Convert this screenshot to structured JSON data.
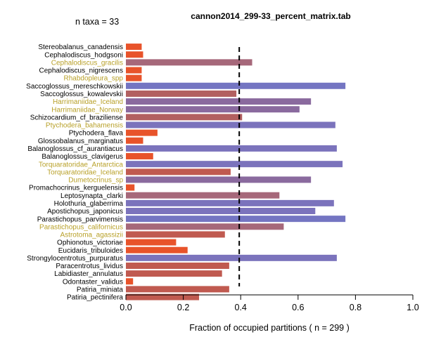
{
  "chart_data": {
    "type": "bar",
    "orientation": "horizontal",
    "title": "cannon2014_299-33_percent_matrix.tab",
    "annotation": "n taxa = 33",
    "xlabel": "Fraction of occupied partitions ( n = 299 )",
    "xlim": [
      0,
      1.0
    ],
    "xticks": [
      "0.0",
      "0.2",
      "0.4",
      "0.6",
      "0.8",
      "1.0"
    ],
    "grid": false,
    "reference_line": 0.395,
    "categories": [
      "Stereobalanus_canadensis",
      "Cephalodiscus_hodgsoni",
      "Cephalodiscus_gracilis",
      "Cephalodiscus_nigrescens",
      "Rhabdopleura_spp",
      "Saccoglossus_mereschkowskii",
      "Saccoglossus_kowalevskii",
      "Harrimaniidae_Iceland",
      "Harrimaniidae_Norway",
      "Schizocardium_cf_braziliense",
      "Ptychodera_bahamensis",
      "Ptychodera_flava",
      "Glossobalanus_marginatus",
      "Balanoglossus_cf_aurantiacus",
      "Balanoglossus_clavigerus",
      "Torquaratoridae_Antarctica",
      "Torquaratoridae_Iceland",
      "Dumetocrinus_sp",
      "Promachocrinus_kerguelensis",
      "Leptosynapta_clarki",
      "Holothuria_glaberrima",
      "Apostichopus_japonicus",
      "Parastichopus_parvimensis",
      "Parastichopus_californicus",
      "Astrotoma_agassizii",
      "Ophionotus_victoriae",
      "Eucidaris_tribuloides",
      "Strongylocentrotus_purpuratus",
      "Paracentrotus_lividus",
      "Labidiaster_annulatus",
      "Odontaster_validus",
      "Patiria_miniata",
      "Patiria_pectinifera"
    ],
    "values": [
      0.055,
      0.06,
      0.44,
      0.055,
      0.055,
      0.765,
      0.385,
      0.645,
      0.605,
      0.405,
      0.73,
      0.11,
      0.06,
      0.735,
      0.095,
      0.755,
      0.365,
      0.645,
      0.03,
      0.535,
      0.725,
      0.66,
      0.765,
      0.55,
      0.345,
      0.175,
      0.215,
      0.735,
      0.36,
      0.335,
      0.025,
      0.36,
      0.255
    ],
    "bar_colors": [
      "#e8532a",
      "#e8532a",
      "#a6687a",
      "#e8532a",
      "#e8532a",
      "#7475c2",
      "#b26060",
      "#8a6a9e",
      "#8a6a9e",
      "#b26060",
      "#7b73bc",
      "#e8532a",
      "#e8532a",
      "#7b73bc",
      "#e8532a",
      "#7b73bc",
      "#c05a50",
      "#8a6a9e",
      "#e8532a",
      "#a6687a",
      "#7b73bc",
      "#7b73bc",
      "#7475c2",
      "#a6687a",
      "#c05a50",
      "#e8532a",
      "#e8532a",
      "#7b73bc",
      "#c05a50",
      "#c05a50",
      "#e8532a",
      "#c05a50",
      "#c05a50"
    ],
    "label_colors": [
      "#000000",
      "#000000",
      "#b8a028",
      "#000000",
      "#b8a028",
      "#000000",
      "#000000",
      "#b8a028",
      "#b8a028",
      "#000000",
      "#b8a028",
      "#000000",
      "#000000",
      "#000000",
      "#000000",
      "#b8a028",
      "#b8a028",
      "#b8a028",
      "#000000",
      "#000000",
      "#000000",
      "#000000",
      "#000000",
      "#b8a028",
      "#b8a028",
      "#000000",
      "#000000",
      "#000000",
      "#000000",
      "#000000",
      "#000000",
      "#000000",
      "#000000"
    ]
  }
}
